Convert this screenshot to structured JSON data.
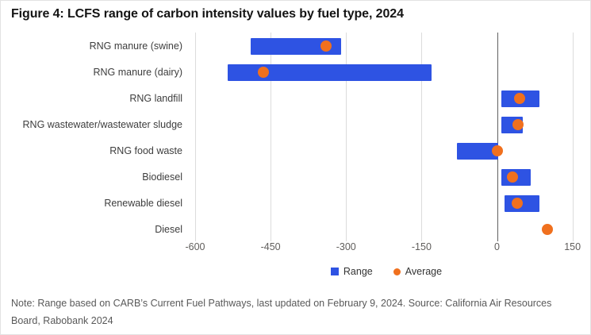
{
  "title": "Figure 4: LCFS range of carbon intensity values by fuel type, 2024",
  "note": "Note: Range based on CARB’s Current Fuel Pathways, last updated on February 9, 2024. Source: California Air Resources Board, Rabobank 2024",
  "legend": {
    "range_label": "Range",
    "average_label": "Average"
  },
  "colors": {
    "range_blue": "#2e53e3",
    "average_orange": "#f0701e",
    "gridline": "#dcdcdc",
    "zero_line": "#616161"
  },
  "chart_data": {
    "type": "bar",
    "subtype": "horizontal-range-with-average-dot",
    "title": "Figure 4: LCFS range of carbon intensity values by fuel type, 2024",
    "xlabel": "",
    "ylabel": "",
    "categories": [
      "RNG manure (swine)",
      "RNG manure (dairy)",
      "RNG landfill",
      "RNG wastewater/wastewater sludge",
      "RNG food waste",
      "Biodiesel",
      "Renewable diesel",
      "Diesel"
    ],
    "series": [
      {
        "name": "Range",
        "type": "range-bar",
        "values": [
          [
            -490,
            -310
          ],
          [
            -535,
            -130
          ],
          [
            8,
            85
          ],
          [
            8,
            52
          ],
          [
            -80,
            3
          ],
          [
            8,
            67
          ],
          [
            15,
            85
          ],
          null
        ]
      },
      {
        "name": "Average",
        "type": "point",
        "values": [
          -340,
          -465,
          45,
          41,
          1,
          30,
          40,
          100
        ]
      }
    ],
    "x_ticks": [
      -600,
      -450,
      -300,
      -150,
      0,
      150
    ],
    "xlim": [
      -600,
      160
    ],
    "grid": true,
    "legend_position": "bottom"
  }
}
